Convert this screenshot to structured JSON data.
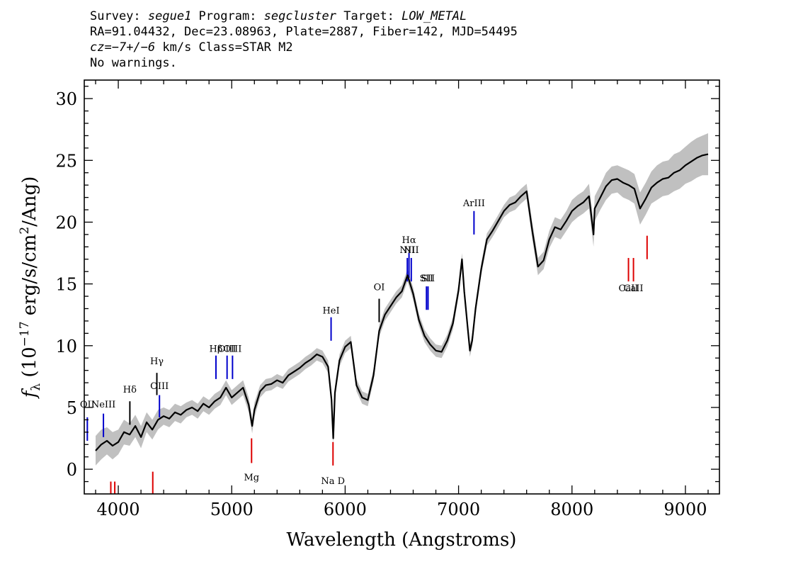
{
  "header": {
    "survey_label": "Survey: ",
    "survey": "segue1",
    "program_label": " Program: ",
    "program": "segcluster",
    "target_label": " Target: ",
    "target": "LOW_METAL",
    "line2": "RA=91.04432, Dec=23.08963, Plate=2887, Fiber=142, MJD=54495",
    "cz_label": "cz",
    "cz_value": "=−7+/−6",
    "cz_rest": " km/s Class=STAR M2",
    "line4": "No warnings."
  },
  "chart_data": {
    "type": "line",
    "xlabel": "Wavelength (Angstroms)",
    "ylabel": "f_λ (10^-17 erg/s/cm^2/Ang)",
    "xlim": [
      3700,
      9300
    ],
    "ylim": [
      -2,
      31.5
    ],
    "xticks": [
      4000,
      5000,
      6000,
      7000,
      8000,
      9000
    ],
    "yticks": [
      0,
      5,
      10,
      15,
      20,
      25,
      30
    ],
    "colors": {
      "flux": "#000000",
      "error_band": "#c0c0c0",
      "emission": "#0000cc",
      "absorption": "#dd0000",
      "neutral": "#000000"
    },
    "series": [
      {
        "type": "spectrum",
        "x": [
          3800,
          3850,
          3900,
          3950,
          4000,
          4050,
          4100,
          4150,
          4200,
          4250,
          4300,
          4350,
          4400,
          4450,
          4500,
          4550,
          4600,
          4650,
          4700,
          4750,
          4800,
          4850,
          4900,
          4950,
          5000,
          5050,
          5100,
          5150,
          5180,
          5200,
          5250,
          5300,
          5350,
          5400,
          5450,
          5500,
          5550,
          5600,
          5650,
          5700,
          5750,
          5800,
          5850,
          5880,
          5895,
          5910,
          5950,
          6000,
          6050,
          6100,
          6150,
          6200,
          6250,
          6300,
          6350,
          6400,
          6450,
          6500,
          6550,
          6600,
          6650,
          6700,
          6750,
          6800,
          6850,
          6900,
          6950,
          7000,
          7030,
          7050,
          7080,
          7100,
          7120,
          7150,
          7200,
          7250,
          7300,
          7350,
          7400,
          7450,
          7500,
          7550,
          7600,
          7650,
          7700,
          7750,
          7800,
          7850,
          7900,
          7950,
          8000,
          8050,
          8100,
          8150,
          8190,
          8200,
          8250,
          8300,
          8350,
          8400,
          8450,
          8500,
          8550,
          8600,
          8650,
          8700,
          8750,
          8800,
          8850,
          8900,
          8950,
          9000,
          9050,
          9100,
          9150,
          9200
        ],
        "y": [
          1.5,
          2.0,
          2.3,
          1.9,
          2.2,
          3.0,
          2.8,
          3.5,
          2.6,
          3.8,
          3.2,
          4.0,
          4.3,
          4.1,
          4.6,
          4.4,
          4.8,
          5.0,
          4.7,
          5.3,
          5.0,
          5.5,
          5.8,
          6.6,
          5.8,
          6.2,
          6.6,
          5.2,
          3.5,
          4.8,
          6.3,
          6.8,
          6.9,
          7.2,
          7.0,
          7.6,
          7.9,
          8.2,
          8.6,
          8.9,
          9.3,
          9.1,
          8.3,
          5.6,
          2.5,
          6.2,
          8.8,
          9.9,
          10.3,
          6.8,
          5.8,
          5.6,
          7.6,
          11.2,
          12.5,
          13.2,
          13.9,
          14.4,
          15.7,
          14.2,
          12.1,
          10.8,
          10.1,
          9.6,
          9.5,
          10.4,
          11.8,
          14.5,
          17.0,
          14.4,
          11.5,
          9.6,
          10.4,
          13.0,
          16.2,
          18.6,
          19.3,
          20.1,
          20.9,
          21.4,
          21.6,
          22.1,
          22.5,
          19.3,
          16.4,
          16.9,
          18.6,
          19.6,
          19.4,
          20.1,
          20.9,
          21.3,
          21.6,
          22.1,
          19.0,
          21.1,
          22.0,
          22.9,
          23.4,
          23.5,
          23.2,
          23.0,
          22.7,
          21.1,
          21.9,
          22.8,
          23.2,
          23.5,
          23.6,
          24.0,
          24.2,
          24.6,
          24.9,
          25.2,
          25.4,
          25.5
        ],
        "err": [
          1.2,
          1.2,
          1.1,
          1.1,
          1.0,
          1.0,
          0.9,
          0.9,
          0.9,
          0.8,
          0.8,
          0.8,
          0.7,
          0.7,
          0.7,
          0.7,
          0.6,
          0.6,
          0.6,
          0.6,
          0.6,
          0.6,
          0.6,
          0.6,
          0.6,
          0.6,
          0.6,
          0.6,
          0.6,
          0.6,
          0.5,
          0.5,
          0.5,
          0.5,
          0.5,
          0.5,
          0.5,
          0.5,
          0.5,
          0.5,
          0.5,
          0.5,
          0.5,
          0.5,
          0.5,
          0.5,
          0.5,
          0.5,
          0.5,
          0.5,
          0.5,
          0.5,
          0.5,
          0.5,
          0.5,
          0.5,
          0.5,
          0.5,
          0.5,
          0.5,
          0.5,
          0.5,
          0.5,
          0.5,
          0.5,
          0.5,
          0.5,
          0.5,
          0.5,
          0.5,
          0.5,
          0.5,
          0.5,
          0.5,
          0.5,
          0.5,
          0.5,
          0.5,
          0.5,
          0.6,
          0.6,
          0.6,
          0.6,
          0.7,
          0.7,
          0.7,
          0.7,
          0.8,
          0.8,
          0.8,
          0.9,
          0.9,
          0.9,
          1.0,
          1.0,
          1.0,
          1.0,
          1.1,
          1.1,
          1.1,
          1.2,
          1.2,
          1.2,
          1.3,
          1.3,
          1.3,
          1.4,
          1.4,
          1.4,
          1.5,
          1.5,
          1.5,
          1.6,
          1.6,
          1.6,
          1.7
        ]
      }
    ],
    "line_labels": [
      {
        "label": "OII",
        "x": 3727,
        "y": 5,
        "kind": "emission",
        "y0": 2.3,
        "y1": 4.2
      },
      {
        "label": "NeIII",
        "x": 3869,
        "y": 5,
        "kind": "emission",
        "y0": 2.6,
        "y1": 4.5
      },
      {
        "label": "Hδ",
        "x": 4102,
        "y": 6.2,
        "kind": "neutral",
        "y0": 3.6,
        "y1": 5.5
      },
      {
        "label": "Hγ",
        "x": 4340,
        "y": 8.5,
        "kind": "neutral",
        "y0": 6.0,
        "y1": 7.8
      },
      {
        "label": "OIII",
        "x": 4363,
        "y": 6.5,
        "kind": "emission",
        "y0": 4.2,
        "y1": 6.0
      },
      {
        "label": "Hβ",
        "x": 4861,
        "y": 9.5,
        "kind": "emission",
        "y0": 7.3,
        "y1": 9.2
      },
      {
        "label": "OIII",
        "x": 4959,
        "y": 9.5,
        "kind": "emission",
        "y0": 7.3,
        "y1": 9.2
      },
      {
        "label": "OIII",
        "x": 5007,
        "y": 9.5,
        "kind": "emission",
        "y0": 7.3,
        "y1": 9.2
      },
      {
        "label": "Mg",
        "x": 5175,
        "y": -0.9,
        "kind": "absorption",
        "y0": 0.5,
        "y1": 2.5
      },
      {
        "label": "HeI",
        "x": 5876,
        "y": 12.6,
        "kind": "emission",
        "y0": 10.4,
        "y1": 12.3
      },
      {
        "label": "Na D",
        "x": 5893,
        "y": -1.2,
        "kind": "absorption",
        "y0": 0.3,
        "y1": 2.2
      },
      {
        "label": "OI",
        "x": 6300,
        "y": 14.5,
        "kind": "neutral",
        "y0": 11.9,
        "y1": 13.8
      },
      {
        "label": "NII",
        "x": 6548,
        "y": 17.5,
        "kind": "emission",
        "y0": 15.2,
        "y1": 17.1
      },
      {
        "label": "Hα",
        "x": 6563,
        "y": 18.3,
        "kind": "emission",
        "y0": 15.5,
        "y1": 17.5
      },
      {
        "label": "NII",
        "x": 6583,
        "y": 17.5,
        "kind": "emission",
        "y0": 15.2,
        "y1": 17.1
      },
      {
        "label": "SII",
        "x": 6717,
        "y": 15.2,
        "kind": "emission",
        "y0": 12.9,
        "y1": 14.8
      },
      {
        "label": "SII",
        "x": 6731,
        "y": 15.2,
        "kind": "emission",
        "y0": 12.9,
        "y1": 14.8
      },
      {
        "label": "ArIII",
        "x": 7136,
        "y": 21.3,
        "kind": "emission",
        "y0": 19.0,
        "y1": 20.9
      },
      {
        "label": "CaII",
        "x": 8498,
        "y": 14.4,
        "kind": "absorption",
        "y0": 15.2,
        "y1": 17.1
      },
      {
        "label": "CaII",
        "x": 8542,
        "y": 14.4,
        "kind": "absorption",
        "y0": 15.2,
        "y1": 17.1
      },
      {
        "label": "",
        "x": 8662,
        "y": 0,
        "kind": "absorption",
        "y0": 17.0,
        "y1": 18.9
      },
      {
        "label": "",
        "x": 3934,
        "y": 0,
        "kind": "absorption",
        "y0": -2.0,
        "y1": -1.0
      },
      {
        "label": "",
        "x": 3969,
        "y": 0,
        "kind": "absorption",
        "y0": -2.0,
        "y1": -1.0
      },
      {
        "label": "",
        "x": 4304,
        "y": 0,
        "kind": "absorption",
        "y0": -2.0,
        "y1": -0.2
      }
    ]
  }
}
